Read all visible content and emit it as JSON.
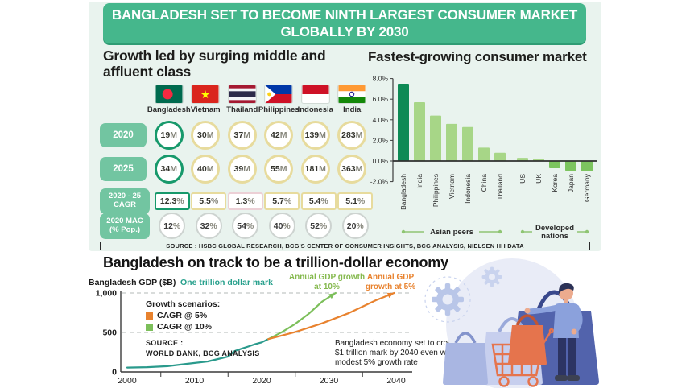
{
  "banner": {
    "title": "BANGLADESH SET TO BECOME NINTH LARGEST CONSUMER MARKET GLOBALLY BY 2030"
  },
  "middle_class_panel": {
    "heading": "Growth led by surging middle and affluent class",
    "countries": [
      "Bangladesh",
      "Vietnam",
      "Thailand",
      "Philippines",
      "Indonesia",
      "India"
    ],
    "rows": [
      {
        "label": "2020",
        "style": "circle",
        "values": [
          "19M",
          "30M",
          "37M",
          "42M",
          "139M",
          "283M"
        ],
        "highlight_index": 0
      },
      {
        "label": "2025",
        "style": "circle",
        "values": [
          "34M",
          "40M",
          "39M",
          "55M",
          "181M",
          "363M"
        ],
        "highlight_index": 0
      },
      {
        "label": "2020 - 25 CAGR",
        "style": "box",
        "values": [
          "12.3%",
          "5.5%",
          "1.3%",
          "5.7%",
          "5.4%",
          "5.1%"
        ],
        "highlight_index": 0,
        "alt_index": 2
      },
      {
        "label": "2020 MAC (% Pop.)",
        "style": "plain",
        "values": [
          "12%",
          "32%",
          "54%",
          "40%",
          "52%",
          "20%"
        ]
      }
    ],
    "source": "SOURCE : HSBC GLOBAL RESEARCH, BCG'S CENTER OF CONSUMER INSIGHTS, BCG ANALYSIS, NIELSEN HH DATA"
  },
  "chart_data": [
    {
      "type": "bar",
      "title": "Fastest-growing consumer market",
      "categories": [
        "Bangladesh",
        "India",
        "Philippines",
        "Vietnam",
        "Indonesia",
        "China",
        "Thailand",
        "US",
        "UK",
        "Korea",
        "Japan",
        "Germany"
      ],
      "values": [
        7.5,
        5.7,
        4.4,
        3.6,
        3.3,
        1.3,
        0.8,
        0.3,
        0.2,
        -0.7,
        -0.95,
        -1.0
      ],
      "ylim": [
        -2,
        8
      ],
      "ytick_values": [
        8,
        6,
        4,
        2,
        0,
        -2
      ],
      "ytick_labels": [
        "8.0%",
        "6.0%",
        "4.0%",
        "2.0%",
        "0.0%",
        "-2.0%"
      ],
      "highlight_index": 0,
      "groups": [
        {
          "label": "Asian peers",
          "from": 0,
          "to": 6,
          "two_line": false
        },
        {
          "label": "Developed nations",
          "from": 7,
          "to": 11,
          "two_line": true
        }
      ],
      "colors": {
        "highlight": "#0e8a55",
        "positive": "#a7d687",
        "negative": "#7cc45f",
        "group_line": "#8fc573"
      }
    },
    {
      "type": "line",
      "title": "Bangladesh on track to be a trillion-dollar economy",
      "ylabel": "Bangladesh GDP ($B)",
      "ytick_values": [
        0,
        500,
        1000
      ],
      "ytick_labels": [
        "0",
        "500",
        "1,000"
      ],
      "xtick_values": [
        2000,
        2010,
        2020,
        2030,
        2040
      ],
      "minor_ticks": [
        2005,
        2015,
        2025,
        2035
      ],
      "reference_lines": [
        {
          "value": 1000,
          "label": "One trillion dollar mark"
        },
        {
          "value": 500,
          "label": ""
        }
      ],
      "series": [
        {
          "name": "Historical GDP",
          "color": "#2a9a8c",
          "arrow": false,
          "points": [
            [
              2000,
              55
            ],
            [
              2003,
              60
            ],
            [
              2006,
              72
            ],
            [
              2009,
              103
            ],
            [
              2012,
              133
            ],
            [
              2014,
              173
            ],
            [
              2015,
              195
            ],
            [
              2016,
              265
            ],
            [
              2017,
              294
            ],
            [
              2018,
              321
            ],
            [
              2019,
              351
            ],
            [
              2020,
              374
            ],
            [
              2021,
              416
            ]
          ]
        },
        {
          "name": "CAGR @ 10%",
          "color": "#7cbf5a",
          "arrow": true,
          "points": [
            [
              2021,
              416
            ],
            [
              2023,
              503
            ],
            [
              2025,
              609
            ],
            [
              2027,
              737
            ],
            [
              2029,
              891
            ],
            [
              2031,
              1000
            ]
          ]
        },
        {
          "name": "CAGR @ 5%",
          "color": "#e8822e",
          "arrow": true,
          "points": [
            [
              2021,
              416
            ],
            [
              2025,
              506
            ],
            [
              2029,
              615
            ],
            [
              2033,
              747
            ],
            [
              2037,
              908
            ],
            [
              2039.7,
              1000
            ]
          ]
        }
      ],
      "callouts": {
        "growth10": "Annual GDP growth at 10%",
        "growth5": "Annual GDP growth at 5%",
        "note": "Bangladesh economy set to cross $1 trillion mark by 2040 even with a modest 5% growth rate"
      },
      "legend": {
        "title": "Growth scenarios:",
        "items": [
          {
            "label": "CAGR @ 5%",
            "color": "#e8822e"
          },
          {
            "label": "CAGR @ 10%",
            "color": "#7cbf5a"
          }
        ]
      },
      "source_line1": "SOURCE :",
      "source_line2": "WORLD BANK, BCG ANALYSIS"
    }
  ]
}
